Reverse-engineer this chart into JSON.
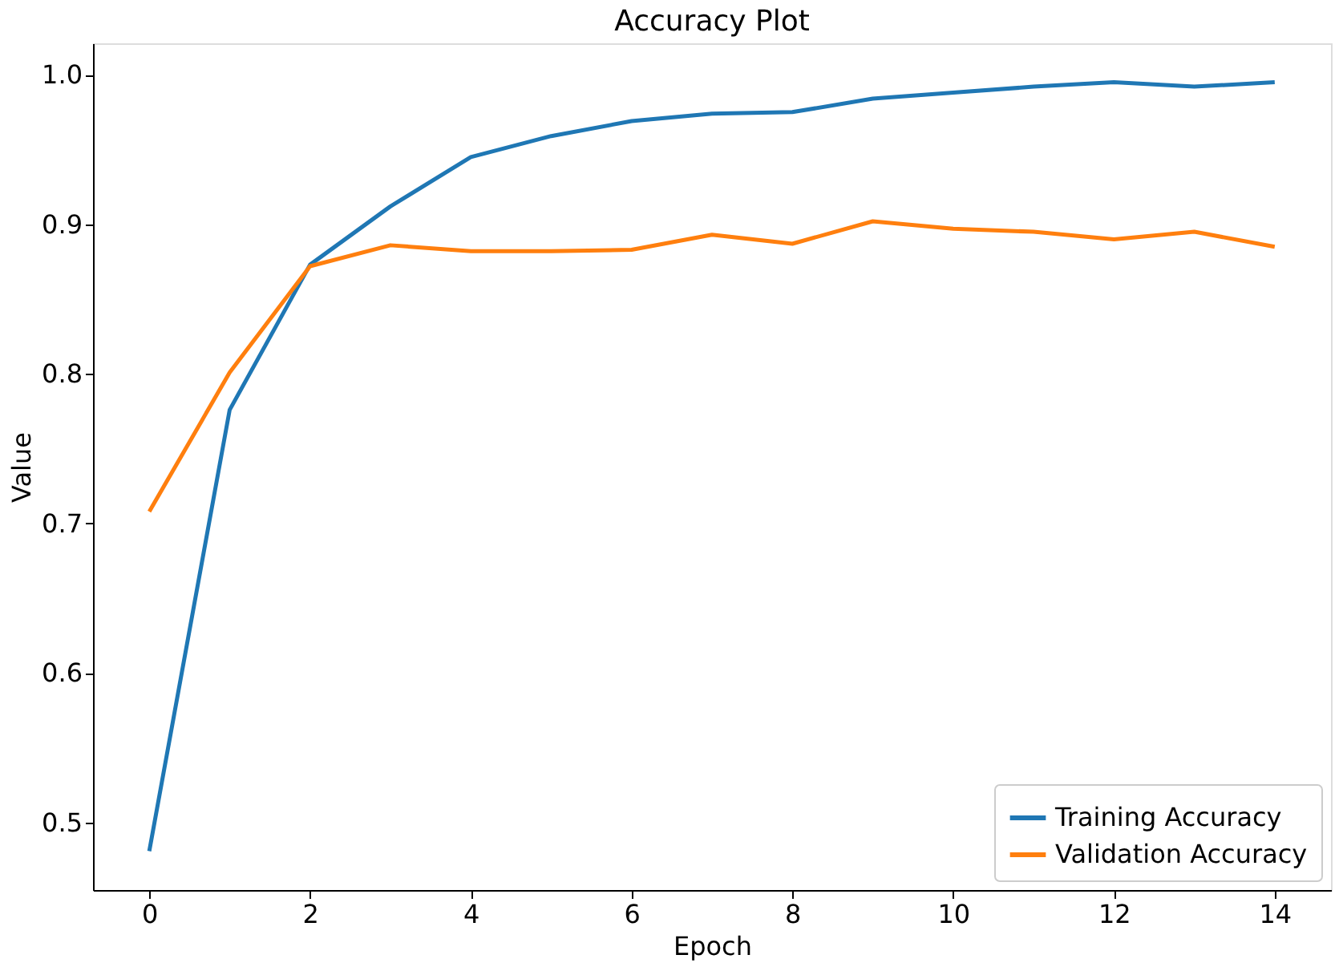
{
  "chart_data": {
    "type": "line",
    "title": "Accuracy Plot",
    "xlabel": "Epoch",
    "ylabel": "Value",
    "x": [
      0,
      1,
      2,
      3,
      4,
      5,
      6,
      7,
      8,
      9,
      10,
      11,
      12,
      13,
      14
    ],
    "series": [
      {
        "name": "Training Accuracy",
        "color": "#1f77b4",
        "values": [
          0.481,
          0.776,
          0.873,
          0.912,
          0.945,
          0.959,
          0.969,
          0.974,
          0.975,
          0.984,
          0.988,
          0.992,
          0.995,
          0.992,
          0.995
        ]
      },
      {
        "name": "Validation Accuracy",
        "color": "#ff7f0e",
        "values": [
          0.708,
          0.801,
          0.872,
          0.886,
          0.882,
          0.882,
          0.883,
          0.893,
          0.887,
          0.902,
          0.897,
          0.895,
          0.89,
          0.895,
          0.885
        ]
      }
    ],
    "xlim": [
      -0.7,
      14.7
    ],
    "xticks": [
      0,
      2,
      4,
      6,
      8,
      10,
      12,
      14
    ],
    "ylim": [
      0.455,
      1.021
    ],
    "yticks": [
      0.5,
      0.6,
      0.7,
      0.8,
      0.9,
      {
        "value": 1,
        "label": "1.0"
      }
    ],
    "grid": false,
    "legend": "bottom right",
    "marker": "none",
    "line_style": "solid"
  }
}
